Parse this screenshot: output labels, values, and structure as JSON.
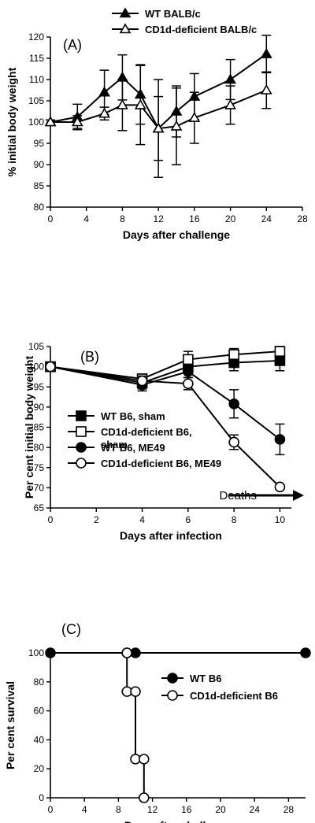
{
  "chart_data": [
    {
      "panel": "(A)",
      "type": "line",
      "xlabel": "Days after challenge",
      "ylabel": "% initial body weight",
      "xlim": [
        0,
        28
      ],
      "ylim": [
        80,
        120
      ],
      "xticks": [
        0,
        4,
        8,
        12,
        16,
        20,
        24,
        28
      ],
      "yticks": [
        80,
        85,
        90,
        95,
        100,
        105,
        110,
        115,
        120
      ],
      "legend_position": "top",
      "series": [
        {
          "name": "WT BALB/c",
          "marker": "triangle-filled",
          "x": [
            0,
            3,
            6,
            8,
            10,
            12,
            14,
            16,
            20,
            24
          ],
          "y": [
            100,
            101.2,
            107,
            110.5,
            106.5,
            98.5,
            102.5,
            106,
            110,
            116
          ],
          "err": [
            0.5,
            3,
            5.2,
            5.3,
            7,
            11.5,
            6,
            5.4,
            4.7,
            4.4
          ]
        },
        {
          "name": "CD1d-deficient BALB/c",
          "marker": "triangle-open",
          "x": [
            0,
            3,
            6,
            8,
            10,
            12,
            14,
            16,
            20,
            24
          ],
          "y": [
            100,
            100,
            102,
            104,
            104,
            98.5,
            99,
            101,
            104,
            107.5
          ],
          "err": [
            0.5,
            1.5,
            1.5,
            6,
            9.3,
            7.5,
            9,
            6,
            4.5,
            4.3
          ]
        }
      ]
    },
    {
      "panel": "(B)",
      "type": "line",
      "xlabel": "Days after infection",
      "ylabel": "Per cent initial body weight",
      "xlim": [
        0,
        10.5
      ],
      "ylim": [
        65,
        105
      ],
      "xticks": [
        0,
        2,
        4,
        6,
        8,
        10
      ],
      "yticks": [
        65,
        70,
        75,
        80,
        85,
        90,
        95,
        100,
        105
      ],
      "annotation": "Deaths",
      "legend_position": "left",
      "series": [
        {
          "name": "WT B6, sham",
          "marker": "square-filled",
          "x": [
            0,
            4,
            6,
            8,
            10
          ],
          "y": [
            100,
            96,
            100,
            101,
            101.5
          ],
          "err": [
            0.5,
            1.5,
            1.5,
            2,
            2.5
          ]
        },
        {
          "name": "CD1d-deficient B6, sham",
          "marker": "square-open",
          "x": [
            0,
            4,
            6,
            8,
            10
          ],
          "y": [
            100,
            97,
            101.8,
            103,
            103.8
          ],
          "err": [
            0.5,
            1.2,
            2,
            1.5,
            1.2
          ]
        },
        {
          "name": "WT B6, ME49",
          "marker": "circle-filled",
          "x": [
            0,
            4,
            6,
            8,
            10
          ],
          "y": [
            100,
            95.5,
            98.8,
            90.8,
            82
          ],
          "err": [
            0.5,
            1.5,
            1.5,
            3.5,
            3.8
          ]
        },
        {
          "name": "CD1d-deficient B6, ME49",
          "marker": "circle-open",
          "x": [
            0,
            4,
            6,
            8,
            10
          ],
          "y": [
            100,
            96.5,
            95.8,
            81.3,
            70.2
          ],
          "err": [
            0.5,
            1.2,
            1.5,
            1.8,
            0.5
          ]
        }
      ]
    },
    {
      "panel": "(C)",
      "type": "line",
      "xlabel": "Days after challenge",
      "ylabel": "Per cent survival",
      "xlim": [
        0,
        30
      ],
      "ylim": [
        0,
        100
      ],
      "xticks": [
        0,
        4,
        8,
        12,
        16,
        20,
        24,
        28
      ],
      "yticks": [
        0,
        20,
        40,
        60,
        80,
        100
      ],
      "legend_position": "right",
      "series": [
        {
          "name": "WT B6",
          "marker": "circle-filled",
          "x": [
            0,
            9,
            10,
            30
          ],
          "y": [
            100,
            100,
            100,
            100
          ]
        },
        {
          "name": "CD1d-deficient B6",
          "marker": "circle-open",
          "x": [
            9,
            9,
            10,
            10,
            11,
            11
          ],
          "y": [
            100,
            73.3,
            73.3,
            26.7,
            26.7,
            0
          ]
        }
      ]
    }
  ]
}
